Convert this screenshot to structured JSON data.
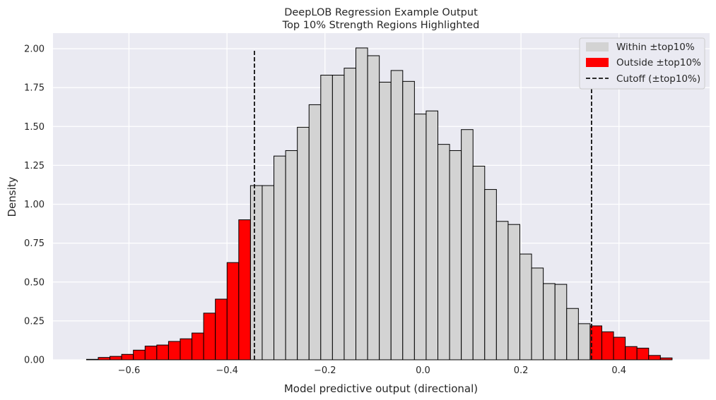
{
  "chart_data": {
    "type": "bar",
    "title": "DeepLOB Regression Example Output",
    "subtitle": "Top 10% Strength Regions Highlighted",
    "xlabel": "Model predictive output (directional)",
    "ylabel": "Density",
    "xlim": [
      -0.755,
      0.585
    ],
    "ylim": [
      0,
      2.1
    ],
    "xticks": [
      -0.6,
      -0.4,
      -0.2,
      0.0,
      0.2,
      0.4
    ],
    "xtick_labels": [
      "−0.6",
      "−0.4",
      "−0.2",
      "0.0",
      "0.2",
      "0.4"
    ],
    "yticks": [
      0,
      0.25,
      0.5,
      0.75,
      1.0,
      1.25,
      1.5,
      1.75,
      2.0
    ],
    "ytick_labels": [
      "0.00",
      "0.25",
      "0.50",
      "0.75",
      "1.00",
      "1.25",
      "1.50",
      "1.75",
      "2.00"
    ],
    "grid": true,
    "legend_position": "top-right",
    "bin_width": 0.0239,
    "bin_start": -0.6866,
    "cutoff_low": -0.344,
    "cutoff_high": 0.344,
    "cutoff_top": 2.0,
    "values": [
      0.003,
      0.015,
      0.022,
      0.035,
      0.062,
      0.088,
      0.095,
      0.118,
      0.135,
      0.172,
      0.3,
      0.39,
      0.625,
      0.9,
      1.12,
      1.12,
      1.31,
      1.345,
      1.495,
      1.64,
      1.83,
      1.83,
      1.875,
      2.005,
      1.955,
      1.785,
      1.86,
      1.79,
      1.58,
      1.6,
      1.385,
      1.345,
      1.48,
      1.245,
      1.095,
      0.89,
      0.87,
      0.68,
      0.59,
      0.49,
      0.485,
      0.33,
      0.232,
      0.218,
      0.18,
      0.145,
      0.085,
      0.075,
      0.028,
      0.012
    ],
    "series": [
      {
        "name": "Within ±top10%",
        "color": "#d3d3d3"
      },
      {
        "name": "Outside ±top10%",
        "color": "#ff0000"
      },
      {
        "name": "Cutoff (±top10%)",
        "color": "#111111",
        "style": "dashed"
      }
    ],
    "colors": {
      "background": "#eaeaf2",
      "grid": "#ffffff",
      "edge": "#000000"
    }
  }
}
